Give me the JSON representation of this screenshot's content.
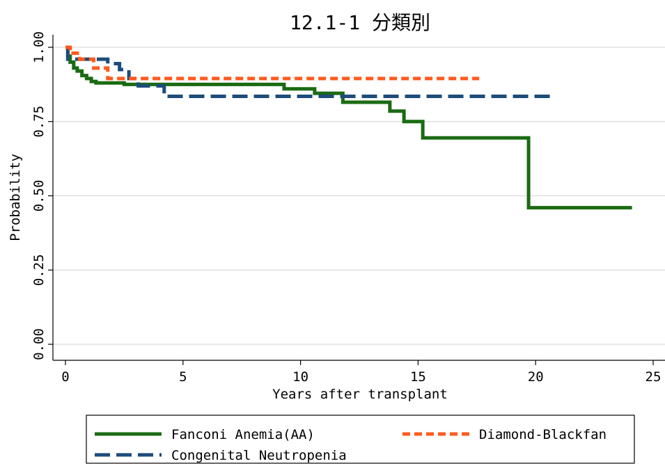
{
  "chart_data": {
    "type": "line",
    "title": "12.1-1 分類別",
    "xlabel": "Years after transplant",
    "ylabel": "Probability",
    "xlim": [
      0,
      25
    ],
    "ylim": [
      0,
      1
    ],
    "x_ticks": [
      "0",
      "5",
      "10",
      "15",
      "20",
      "25"
    ],
    "y_ticks": [
      "0.00",
      "0.25",
      "0.50",
      "0.75",
      "1.00"
    ],
    "grid": true,
    "legend_position": "bottom",
    "series": [
      {
        "name": "Fanconi Anemia(AA)",
        "color": "#1a6b12",
        "style": "solid",
        "x": [
          0,
          0.1,
          0.2,
          0.35,
          0.5,
          0.7,
          0.9,
          1.1,
          1.3,
          2.5,
          9.3,
          10.6,
          11.8,
          13.8,
          14.4,
          15.2,
          19.7,
          24.1
        ],
        "y": [
          1.0,
          0.97,
          0.95,
          0.93,
          0.92,
          0.905,
          0.895,
          0.885,
          0.88,
          0.875,
          0.86,
          0.845,
          0.815,
          0.785,
          0.75,
          0.695,
          0.46,
          0.46
        ]
      },
      {
        "name": "Diamond-Blackfan",
        "color": "#ff5a1f",
        "style": "dashed",
        "x": [
          0,
          0.2,
          0.6,
          1.2,
          1.8,
          17.6
        ],
        "y": [
          1.0,
          0.98,
          0.96,
          0.93,
          0.895,
          0.895
        ]
      },
      {
        "name": "Congenital Neutropenia",
        "color": "#1d4c7a",
        "style": "dashed",
        "x": [
          0,
          0.1,
          1.0,
          1.8,
          2.3,
          2.7,
          3.1,
          4.2,
          20.7
        ],
        "y": [
          1.0,
          0.96,
          0.96,
          0.945,
          0.925,
          0.895,
          0.87,
          0.835,
          0.835
        ]
      }
    ]
  }
}
